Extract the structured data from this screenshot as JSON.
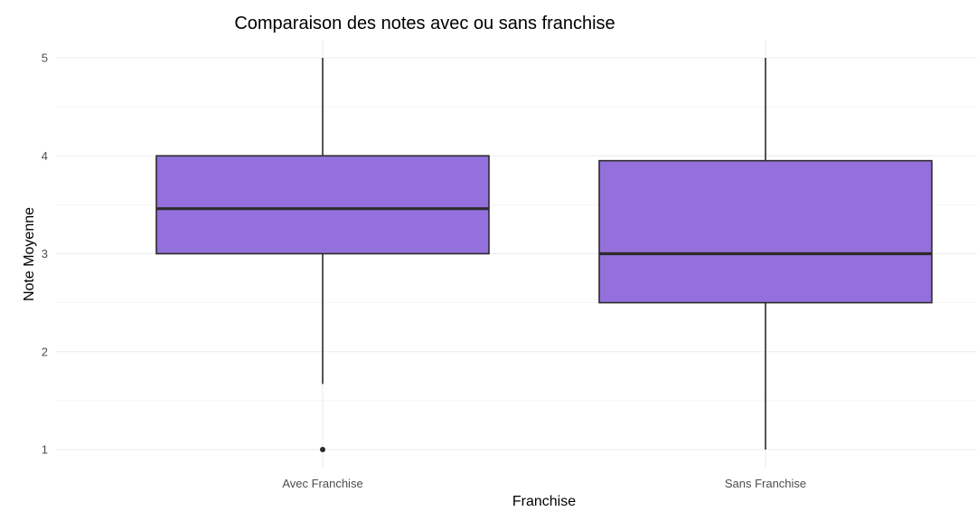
{
  "chart_data": {
    "type": "boxplot",
    "title": "Comparaison des notes avec ou sans franchise",
    "xlabel": "Franchise",
    "ylabel": "Note Moyenne",
    "categories": [
      "Avec Franchise",
      "Sans Franchise"
    ],
    "boxes": [
      {
        "category": "Avec Franchise",
        "whisker_low": 1.67,
        "q1": 3.0,
        "median": 3.46,
        "q3": 4.0,
        "whisker_high": 5.0,
        "outliers": [
          1.0
        ]
      },
      {
        "category": "Sans Franchise",
        "whisker_low": 1.0,
        "q1": 2.5,
        "median": 3.0,
        "q3": 3.95,
        "whisker_high": 5.0,
        "outliers": []
      }
    ],
    "y_ticks": [
      1,
      2,
      3,
      4,
      5
    ],
    "ylim": [
      0.9,
      5.2
    ],
    "grid": true,
    "colors": {
      "box_fill": "#9370DB",
      "box_stroke": "#2b2b2b",
      "grid": "#ebebeb"
    }
  }
}
